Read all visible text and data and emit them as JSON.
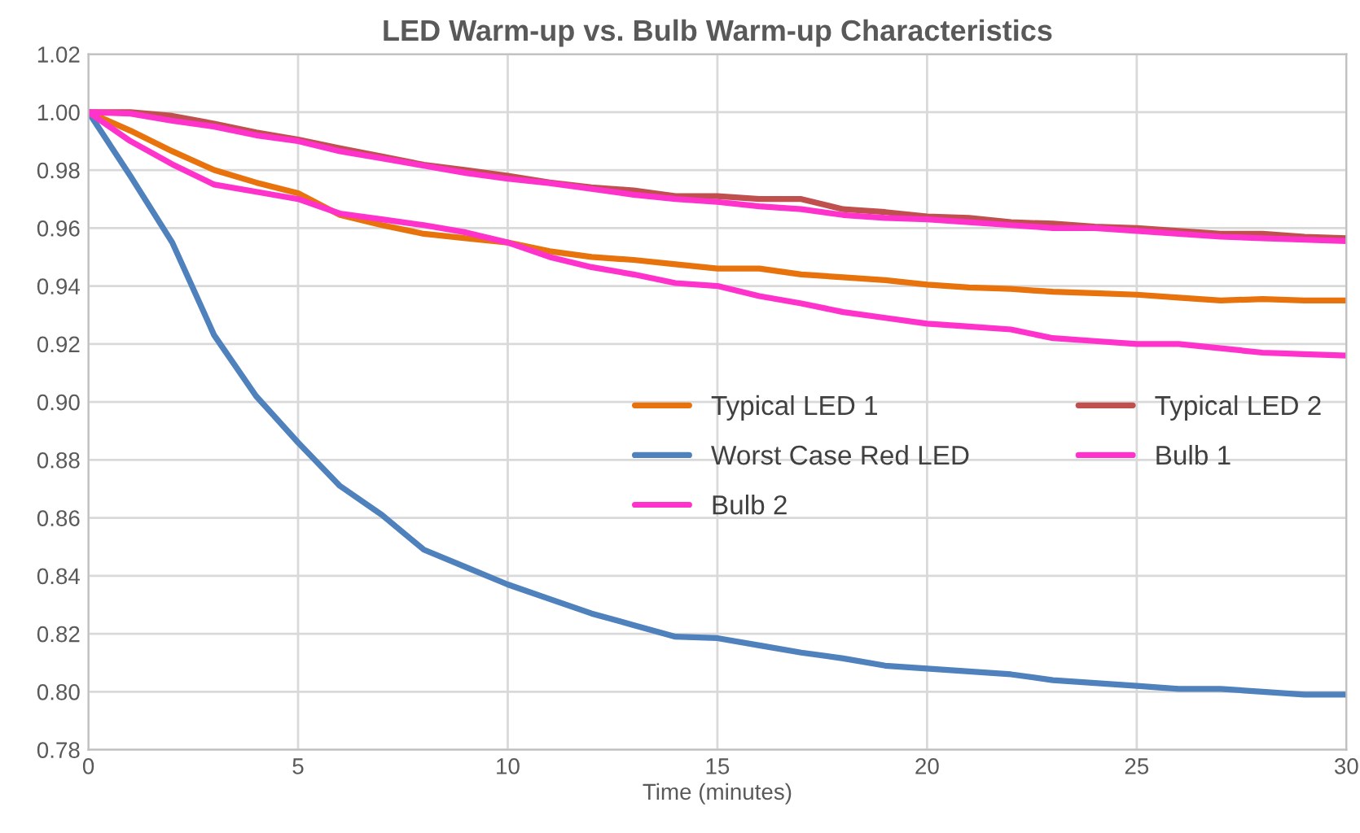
{
  "chart_data": {
    "type": "line",
    "title": "LED Warm-up vs. Bulb Warm-up Characteristics",
    "xlabel": "Time (minutes)",
    "x": [
      0,
      1,
      2,
      3,
      4,
      5,
      6,
      7,
      8,
      9,
      10,
      11,
      12,
      13,
      14,
      15,
      16,
      17,
      18,
      19,
      20,
      21,
      22,
      23,
      24,
      25,
      26,
      27,
      28,
      29,
      30
    ],
    "series": [
      {
        "name": "Typical LED 1",
        "color": "#e8720c",
        "values": [
          1.0,
          0.9936,
          0.9865,
          0.98,
          0.9757,
          0.972,
          0.9645,
          0.961,
          0.958,
          0.9565,
          0.955,
          0.952,
          0.95,
          0.949,
          0.9475,
          0.946,
          0.946,
          0.944,
          0.943,
          0.942,
          0.9405,
          0.9395,
          0.939,
          0.938,
          0.9375,
          0.937,
          0.936,
          0.935,
          0.9355,
          0.935,
          0.935
        ]
      },
      {
        "name": "Typical LED 2",
        "color": "#c0504d",
        "values": [
          1.0,
          1.0,
          0.9987,
          0.996,
          0.993,
          0.9905,
          0.9875,
          0.9847,
          0.9818,
          0.98,
          0.978,
          0.9757,
          0.974,
          0.973,
          0.971,
          0.971,
          0.97,
          0.97,
          0.9665,
          0.9655,
          0.964,
          0.9635,
          0.962,
          0.9615,
          0.9605,
          0.96,
          0.959,
          0.958,
          0.958,
          0.957,
          0.9565
        ]
      },
      {
        "name": "Worst Case Red LED",
        "color": "#4f81bd",
        "values": [
          1.0,
          0.978,
          0.955,
          0.923,
          0.902,
          0.886,
          0.871,
          0.861,
          0.849,
          0.843,
          0.837,
          0.832,
          0.827,
          0.823,
          0.819,
          0.8185,
          0.816,
          0.8135,
          0.8115,
          0.809,
          0.808,
          0.807,
          0.806,
          0.804,
          0.803,
          0.802,
          0.801,
          0.801,
          0.8,
          0.799,
          0.799
        ]
      },
      {
        "name": "Bulb 1",
        "color": "#ff33cc",
        "values": [
          1.0,
          0.9995,
          0.997,
          0.995,
          0.992,
          0.99,
          0.9865,
          0.984,
          0.9815,
          0.979,
          0.977,
          0.9755,
          0.9735,
          0.9715,
          0.97,
          0.969,
          0.9675,
          0.9665,
          0.9645,
          0.9635,
          0.963,
          0.962,
          0.961,
          0.96,
          0.96,
          0.959,
          0.958,
          0.957,
          0.9565,
          0.956,
          0.9555
        ]
      },
      {
        "name": "Bulb 2",
        "color": "#ff33cc",
        "values": [
          1.0,
          0.99,
          0.982,
          0.975,
          0.9725,
          0.97,
          0.965,
          0.963,
          0.961,
          0.9585,
          0.955,
          0.95,
          0.9465,
          0.944,
          0.941,
          0.94,
          0.9365,
          0.934,
          0.931,
          0.929,
          0.927,
          0.926,
          0.925,
          0.922,
          0.921,
          0.92,
          0.92,
          0.9185,
          0.917,
          0.9165,
          0.916
        ]
      }
    ],
    "xlim": [
      0,
      30
    ],
    "xticks": [
      0,
      5,
      10,
      15,
      20,
      25,
      30
    ],
    "ylim": [
      0.78,
      1.02
    ],
    "yticks": [
      {
        "value": 0.78,
        "label": "0.78"
      },
      {
        "value": 0.8,
        "label": "0.80"
      },
      {
        "value": 0.82,
        "label": "0.82"
      },
      {
        "value": 0.84,
        "label": "0.84"
      },
      {
        "value": 0.86,
        "label": "0.86"
      },
      {
        "value": 0.88,
        "label": "0.88"
      },
      {
        "value": 0.9,
        "label": "0.90"
      },
      {
        "value": 0.92,
        "label": "0.92"
      },
      {
        "value": 0.94,
        "label": "0.94"
      },
      {
        "value": 0.96,
        "label": "0.96"
      },
      {
        "value": 0.98,
        "label": "0.98"
      },
      {
        "value": 1.0,
        "label": "1.00"
      },
      {
        "value": 1.02,
        "label": "1.02"
      }
    ],
    "grid": true,
    "legend": "center right",
    "line_style": "solid",
    "marker": "none"
  }
}
